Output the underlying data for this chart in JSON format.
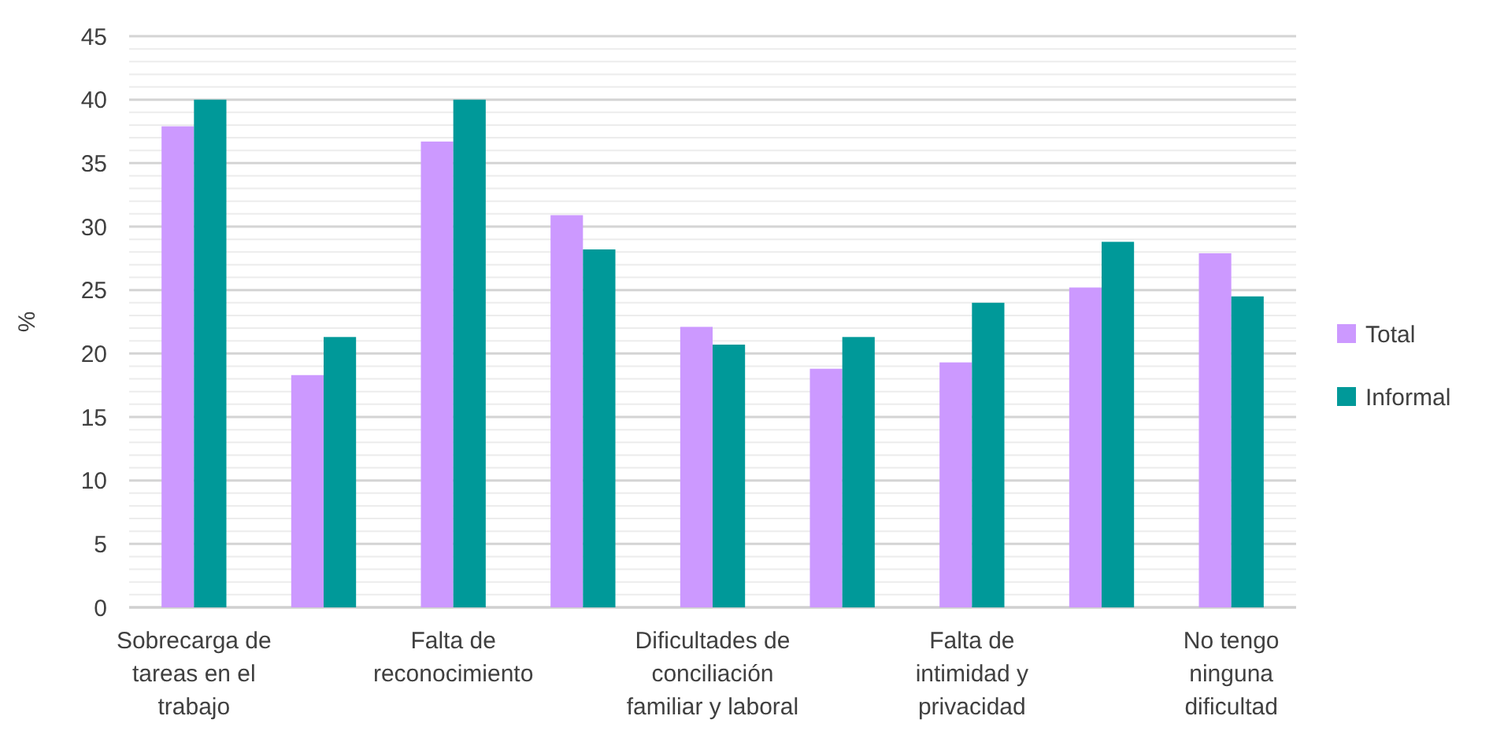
{
  "chart_data": {
    "type": "bar",
    "ylabel": "%",
    "categories": [
      "Sobrecarga de\ntareas en el\ntrabajo",
      null,
      "Falta de\nreconocimiento",
      null,
      "Dificultades de\nconciliación\nfamiliar y laboral",
      null,
      "Falta de\nintimidad y\nprivacidad",
      null,
      "No tengo\nninguna\ndificultad"
    ],
    "series": [
      {
        "name": "Total",
        "color": "#cc99ff",
        "values": [
          37.9,
          18.3,
          36.7,
          30.9,
          22.1,
          18.8,
          19.3,
          25.2,
          27.9
        ]
      },
      {
        "name": "Informal",
        "color": "#009999",
        "values": [
          40,
          21.3,
          40,
          28.2,
          20.7,
          21.3,
          24.0,
          28.8,
          24.5
        ]
      }
    ],
    "ylim": [
      0,
      45
    ],
    "yticks": [
      0,
      {
        "value": 1,
        "label": null
      },
      {
        "value": 2,
        "label": null
      },
      {
        "value": 3,
        "label": null
      },
      {
        "value": 4,
        "label": null
      },
      5,
      {
        "value": 6,
        "label": null
      },
      {
        "value": 7,
        "label": null
      },
      {
        "value": 8,
        "label": null
      },
      {
        "value": 9,
        "label": null
      },
      10,
      {
        "value": 11,
        "label": null
      },
      {
        "value": 12,
        "label": null
      },
      {
        "value": 13,
        "label": null
      },
      {
        "value": 14,
        "label": null
      },
      15,
      {
        "value": 16,
        "label": null
      },
      {
        "value": 17,
        "label": null
      },
      {
        "value": 18,
        "label": null
      },
      {
        "value": 19,
        "label": null
      },
      20,
      {
        "value": 21,
        "label": null
      },
      {
        "value": 22,
        "label": null
      },
      {
        "value": 23,
        "label": null
      },
      {
        "value": 24,
        "label": null
      },
      25,
      {
        "value": 26,
        "label": null
      },
      {
        "value": 27,
        "label": null
      },
      {
        "value": 28,
        "label": null
      },
      {
        "value": 29,
        "label": null
      },
      30,
      {
        "value": 31,
        "label": null
      },
      {
        "value": 32,
        "label": null
      },
      {
        "value": 33,
        "label": null
      },
      {
        "value": 34,
        "label": null
      },
      35,
      {
        "value": 36,
        "label": null
      },
      {
        "value": 37,
        "label": null
      },
      {
        "value": 38,
        "label": null
      },
      {
        "value": 39,
        "label": null
      },
      40,
      {
        "value": 41,
        "label": null
      },
      {
        "value": 42,
        "label": null
      },
      {
        "value": 43,
        "label": null
      },
      {
        "value": 44,
        "label": null
      },
      45
    ],
    "grid": true,
    "legend": "right"
  }
}
